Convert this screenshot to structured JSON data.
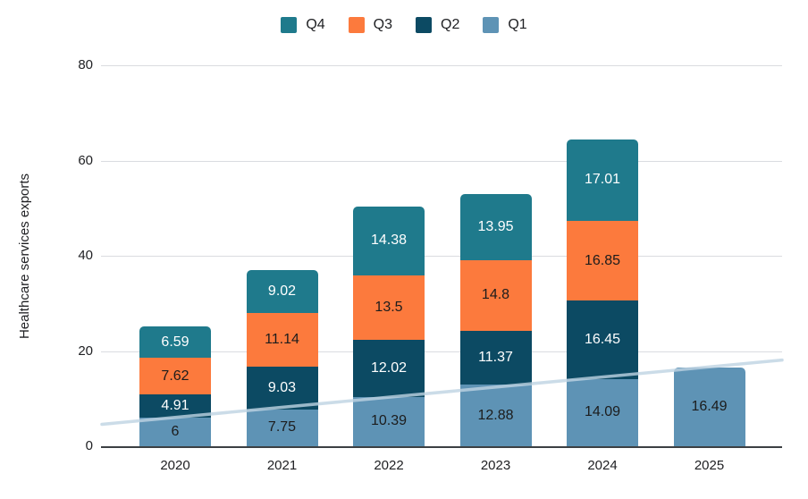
{
  "chart_data": {
    "type": "bar",
    "variant": "stacked-vertical",
    "title": "",
    "xlabel": "",
    "ylabel": "Healthcare services exports",
    "categories": [
      "2020",
      "2021",
      "2022",
      "2023",
      "2024",
      "2025"
    ],
    "series": [
      {
        "name": "Q1",
        "color": "#5e93b5",
        "label_color": "#1c1c1c",
        "values": [
          6,
          7.75,
          10.39,
          12.88,
          14.09,
          16.49
        ]
      },
      {
        "name": "Q2",
        "color": "#0c4a63",
        "label_color": "#ffffff",
        "values": [
          4.91,
          9.03,
          12.02,
          11.37,
          16.45,
          null
        ]
      },
      {
        "name": "Q3",
        "color": "#fc7a3d",
        "label_color": "#1c1c1c",
        "values": [
          7.62,
          11.14,
          13.5,
          14.8,
          16.85,
          null
        ]
      },
      {
        "name": "Q4",
        "color": "#1f7a8c",
        "label_color": "#ffffff",
        "values": [
          6.59,
          9.02,
          14.38,
          13.95,
          17.01,
          null
        ]
      }
    ],
    "legend": {
      "position": "top",
      "order": [
        "Q4",
        "Q3",
        "Q2",
        "Q1"
      ]
    },
    "y_ticks": [
      0,
      20,
      40,
      60,
      80
    ],
    "ylim": [
      0,
      80
    ],
    "grid": true,
    "trendline": {
      "series": "Q1",
      "start_value": 4.6,
      "end_value": 18.1,
      "color": "#bed3e2"
    },
    "colors": {
      "gridline": "#dadce0",
      "axis": "#3c4043",
      "text": "#202124"
    }
  }
}
